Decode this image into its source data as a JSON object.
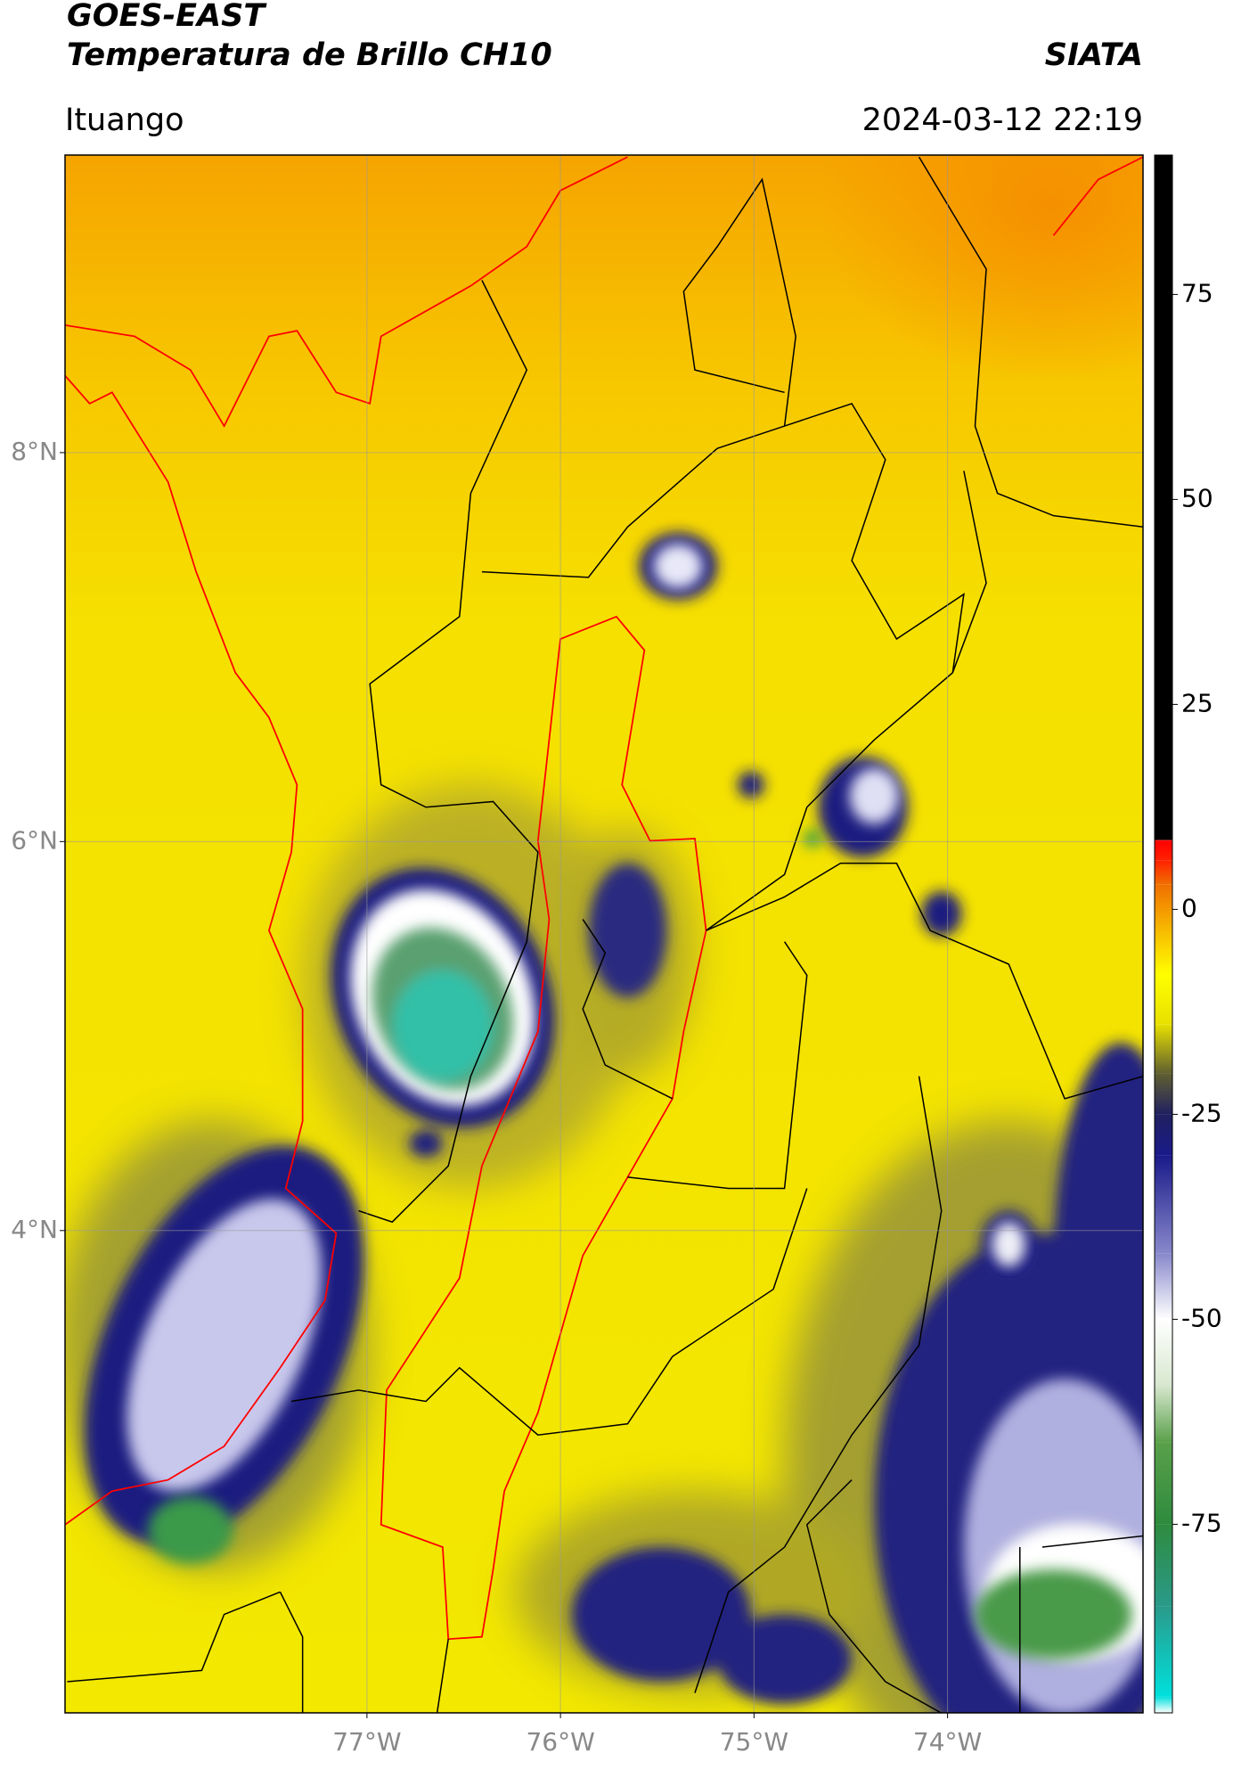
{
  "header": {
    "satellite": "GOES-EAST",
    "product": "Temperatura de Brillo CH10",
    "institution": "SIATA",
    "region": "Ituango",
    "datetime": "2024-03-12 22:19"
  },
  "map": {
    "lat_lim": [
      1.52,
      9.53
    ],
    "lon_lim": [
      -78.56,
      -72.99
    ],
    "lat_ticks": [
      {
        "value": 8,
        "label": "8°N"
      },
      {
        "value": 6,
        "label": "6°N"
      },
      {
        "value": 4,
        "label": "4°N"
      }
    ],
    "lon_ticks": [
      {
        "value": -77,
        "label": "77°W"
      },
      {
        "value": -76,
        "label": "76°W"
      },
      {
        "value": -75,
        "label": "75°W"
      },
      {
        "value": -74,
        "label": "74°W"
      }
    ],
    "grid": true
  },
  "colorbar": {
    "lim": [
      -98,
      92
    ],
    "ticks": [
      75,
      50,
      25,
      0,
      -25,
      -50,
      -75
    ],
    "stops": [
      {
        "value": -98,
        "color": "#ffffff"
      },
      {
        "value": -96,
        "color": "#00e0dc"
      },
      {
        "value": -85,
        "color": "#2a9a8a"
      },
      {
        "value": -75,
        "color": "#2e8b3e"
      },
      {
        "value": -65,
        "color": "#5aa04a"
      },
      {
        "value": -58,
        "color": "#d8e8d0"
      },
      {
        "value": -50,
        "color": "#ffffff"
      },
      {
        "value": -42,
        "color": "#8888cc"
      },
      {
        "value": -30,
        "color": "#1a1a8a"
      },
      {
        "value": -25,
        "color": "#202060"
      },
      {
        "value": -20,
        "color": "#606030"
      },
      {
        "value": -14,
        "color": "#e8e000"
      },
      {
        "value": -8,
        "color": "#ffff00"
      },
      {
        "value": -3,
        "color": "#f8c000"
      },
      {
        "value": 3,
        "color": "#f07000"
      },
      {
        "value": 6,
        "color": "#ff2000"
      },
      {
        "value": 8.4,
        "color": "#ff0000"
      },
      {
        "value": 8.5,
        "color": "#000000"
      },
      {
        "value": 92,
        "color": "#000000"
      }
    ]
  }
}
